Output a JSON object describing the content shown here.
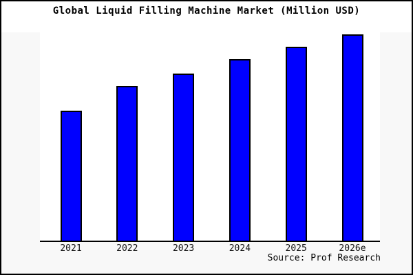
{
  "window": {
    "title": "Global Liquid Filling Machine Market (Million USD)",
    "source": "Source: Prof Research"
  },
  "chart_data": {
    "type": "bar",
    "title": "Global Liquid Filling Machine Market (Million USD)",
    "categories": [
      "2021",
      "2022",
      "2023",
      "2024",
      "2025",
      "2026e"
    ],
    "values": [
      63,
      75,
      81,
      88,
      94,
      100
    ],
    "value_note": "y-axis has no tick labels; values are relative estimates from bar heights with 2026e = 100",
    "xlabel": "",
    "ylabel": "",
    "ylim": [
      0,
      101
    ],
    "grid": false,
    "legend": false,
    "bar_color": "#0000ff",
    "bar_border_color": "#000000",
    "source": "Source: Prof Research"
  },
  "colors": {
    "figure_background": "#f8f8f8",
    "plot_background": "#ffffff",
    "title_band_background": "#ffffff",
    "bar_fill": "#0000ff",
    "bar_border": "#000000",
    "axis_line": "#000000",
    "text": "#000000"
  }
}
